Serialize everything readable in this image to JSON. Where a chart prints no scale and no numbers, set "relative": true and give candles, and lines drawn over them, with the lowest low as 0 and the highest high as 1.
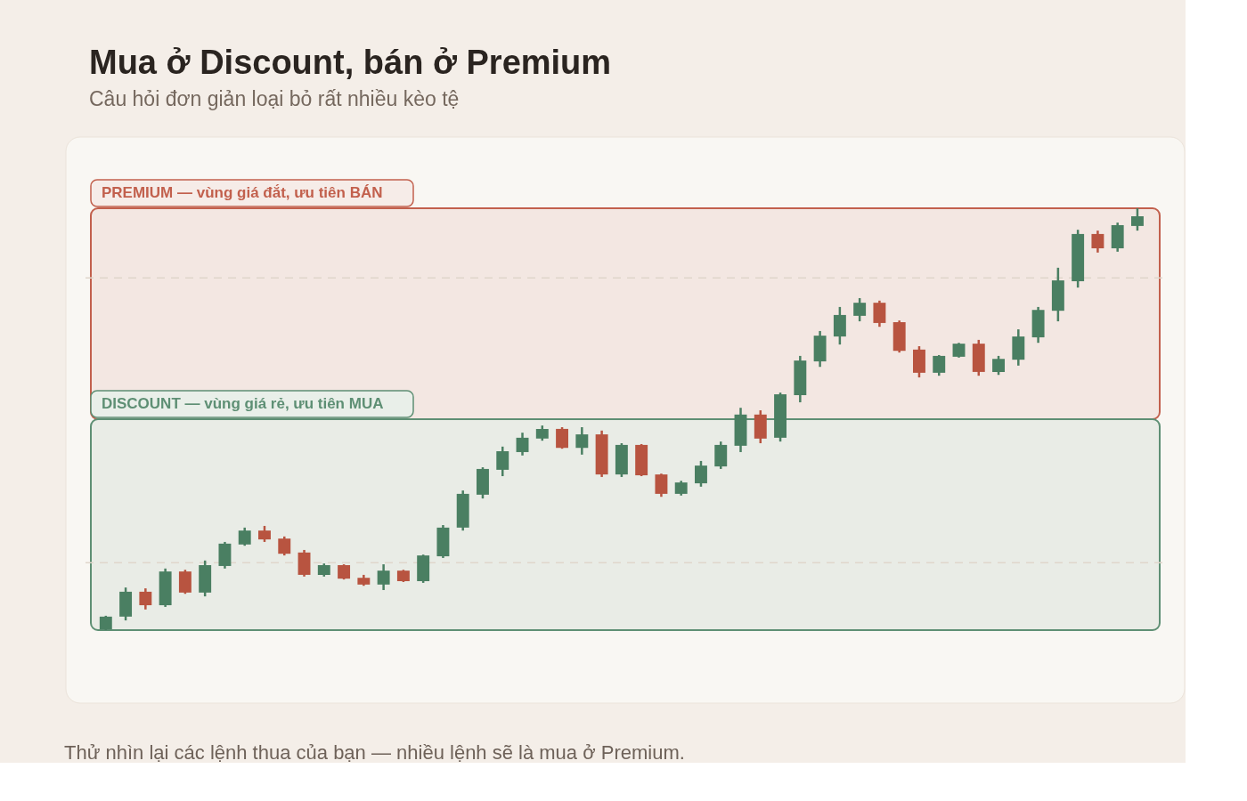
{
  "chart_data": {
    "type": "candlestick",
    "title": "Mua ở Discount, bán ở Premium",
    "subtitle": "Câu hỏi đơn giản loại bỏ rất nhiều kèo tệ",
    "relative": true,
    "categories": [
      null,
      null,
      null,
      null,
      null,
      null,
      null,
      null,
      null,
      null,
      null,
      null,
      null,
      null,
      null,
      null,
      null,
      null,
      null,
      null,
      null,
      null,
      null,
      null,
      null,
      null,
      null,
      null,
      null,
      null,
      null,
      null,
      null,
      null,
      null,
      null,
      null,
      null,
      null,
      null,
      null,
      null,
      null,
      null,
      null,
      null,
      null,
      null,
      null,
      null,
      null,
      null,
      null
    ],
    "ohlc": [
      [
        0.002,
        0.034,
        0.0,
        0.032
      ],
      [
        0.032,
        0.101,
        0.023,
        0.091
      ],
      [
        0.091,
        0.099,
        0.049,
        0.059
      ],
      [
        0.059,
        0.146,
        0.055,
        0.139
      ],
      [
        0.139,
        0.143,
        0.086,
        0.089
      ],
      [
        0.089,
        0.165,
        0.08,
        0.154
      ],
      [
        0.152,
        0.209,
        0.146,
        0.205
      ],
      [
        0.203,
        0.243,
        0.2,
        0.236
      ],
      [
        0.236,
        0.247,
        0.209,
        0.215
      ],
      [
        0.217,
        0.222,
        0.177,
        0.181
      ],
      [
        0.184,
        0.19,
        0.127,
        0.131
      ],
      [
        0.131,
        0.158,
        0.127,
        0.154
      ],
      [
        0.154,
        0.156,
        0.12,
        0.122
      ],
      [
        0.124,
        0.131,
        0.105,
        0.108
      ],
      [
        0.108,
        0.156,
        0.095,
        0.141
      ],
      [
        0.141,
        0.143,
        0.114,
        0.116
      ],
      [
        0.116,
        0.179,
        0.112,
        0.177
      ],
      [
        0.175,
        0.249,
        0.171,
        0.243
      ],
      [
        0.243,
        0.331,
        0.236,
        0.323
      ],
      [
        0.321,
        0.386,
        0.312,
        0.382
      ],
      [
        0.38,
        0.435,
        0.365,
        0.424
      ],
      [
        0.422,
        0.468,
        0.414,
        0.456
      ],
      [
        0.454,
        0.485,
        0.449,
        0.477
      ],
      [
        0.477,
        0.481,
        0.43,
        0.432
      ],
      [
        0.432,
        0.481,
        0.416,
        0.464
      ],
      [
        0.464,
        0.473,
        0.363,
        0.369
      ],
      [
        0.369,
        0.443,
        0.363,
        0.439
      ],
      [
        0.439,
        0.441,
        0.365,
        0.367
      ],
      [
        0.369,
        0.371,
        0.316,
        0.323
      ],
      [
        0.323,
        0.354,
        0.319,
        0.35
      ],
      [
        0.348,
        0.401,
        0.34,
        0.39
      ],
      [
        0.388,
        0.447,
        0.382,
        0.439
      ],
      [
        0.437,
        0.527,
        0.422,
        0.511
      ],
      [
        0.511,
        0.521,
        0.443,
        0.454
      ],
      [
        0.456,
        0.563,
        0.447,
        0.559
      ],
      [
        0.557,
        0.65,
        0.54,
        0.639
      ],
      [
        0.637,
        0.709,
        0.624,
        0.698
      ],
      [
        0.696,
        0.766,
        0.677,
        0.747
      ],
      [
        0.745,
        0.787,
        0.732,
        0.776
      ],
      [
        0.776,
        0.781,
        0.719,
        0.728
      ],
      [
        0.73,
        0.734,
        0.658,
        0.662
      ],
      [
        0.665,
        0.673,
        0.599,
        0.61
      ],
      [
        0.61,
        0.652,
        0.603,
        0.65
      ],
      [
        0.648,
        0.681,
        0.646,
        0.679
      ],
      [
        0.679,
        0.688,
        0.603,
        0.612
      ],
      [
        0.612,
        0.65,
        0.605,
        0.643
      ],
      [
        0.641,
        0.713,
        0.627,
        0.696
      ],
      [
        0.694,
        0.766,
        0.681,
        0.759
      ],
      [
        0.757,
        0.859,
        0.732,
        0.829
      ],
      [
        0.827,
        0.949,
        0.812,
        0.939
      ],
      [
        0.939,
        0.947,
        0.895,
        0.905
      ],
      [
        0.905,
        0.966,
        0.897,
        0.96
      ],
      [
        0.958,
        1.0,
        0.947,
        0.981
      ]
    ],
    "colors": [
      "#4a7f62",
      "#4a7f62",
      "#b85440",
      "#4a7f62",
      "#b85440",
      "#4a7f62",
      "#4a7f62",
      "#4a7f62",
      "#b85440",
      "#b85440",
      "#b85440",
      "#4a7f62",
      "#b85440",
      "#b85440",
      "#4a7f62",
      "#b85440",
      "#4a7f62",
      "#4a7f62",
      "#4a7f62",
      "#4a7f62",
      "#4a7f62",
      "#4a7f62",
      "#4a7f62",
      "#b85440",
      "#4a7f62",
      "#b85440",
      "#4a7f62",
      "#b85440",
      "#b85440",
      "#4a7f62",
      "#4a7f62",
      "#4a7f62",
      "#4a7f62",
      "#b85440",
      "#4a7f62",
      "#4a7f62",
      "#4a7f62",
      "#4a7f62",
      "#4a7f62",
      "#b85440",
      "#b85440",
      "#b85440",
      "#4a7f62",
      "#4a7f62",
      "#b85440",
      "#4a7f62",
      "#4a7f62",
      "#4a7f62",
      "#4a7f62",
      "#4a7f62",
      "#b85440",
      "#4a7f62",
      "#4a7f62"
    ],
    "bands": [
      {
        "axis": "y",
        "from": 0.5,
        "to": 1.0,
        "label": "PREMIUM — vùng giá đắt, ưu tiên BÁN",
        "color": "#c2604d"
      },
      {
        "axis": "y",
        "from": 0.0,
        "to": 0.5,
        "label": "DISCOUNT — vùng giá rẻ, ưu tiên MUA",
        "color": "#5e8f74"
      }
    ],
    "ref_lines": [
      {
        "axis": "y",
        "value": 0.835,
        "color": "#e0d6cb",
        "line_style": "dashed"
      },
      {
        "axis": "y",
        "value": 0.16,
        "color": "#e0d6cb",
        "line_style": "dashed"
      }
    ],
    "annotations": [
      "Thử nhìn lại các lệnh thua của bạn — nhiều lệnh sẽ là mua ở Premium."
    ]
  }
}
